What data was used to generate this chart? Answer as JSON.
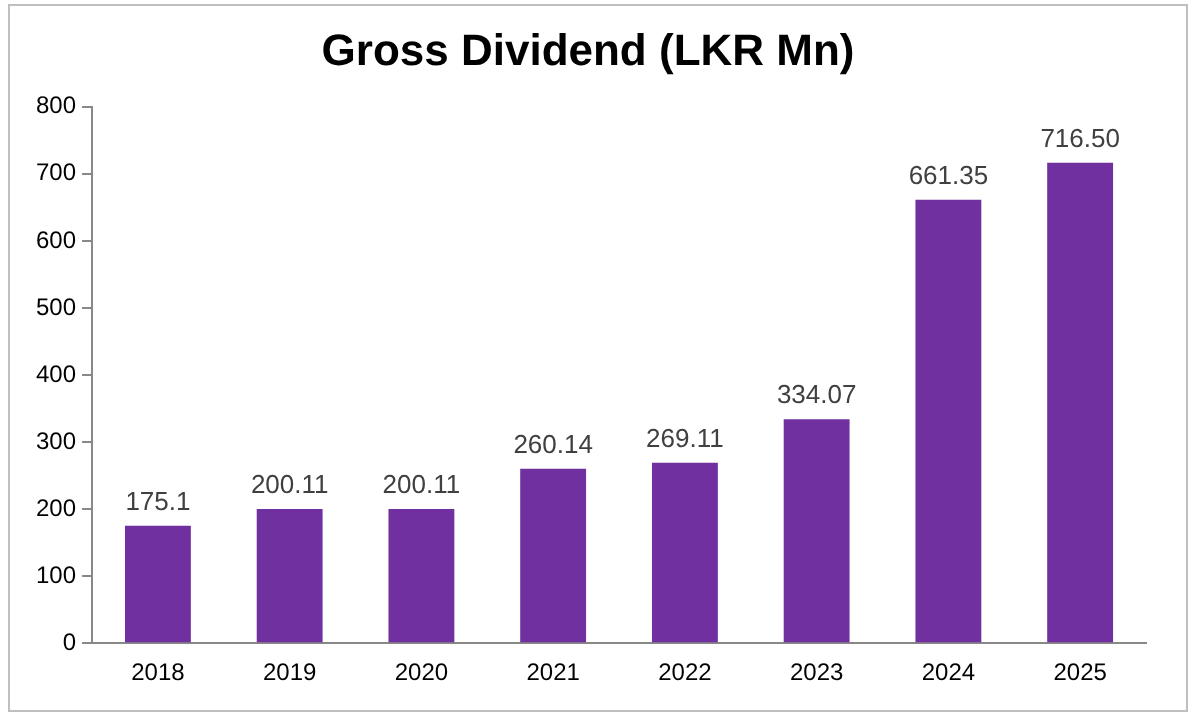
{
  "chart_data": {
    "type": "bar",
    "title": "Gross Dividend (LKR Mn)",
    "categories": [
      "2018",
      "2019",
      "2020",
      "2021",
      "2022",
      "2023",
      "2024",
      "2025"
    ],
    "values": [
      175.1,
      200.11,
      200.11,
      260.14,
      269.11,
      334.07,
      661.35,
      716.5
    ],
    "value_labels": [
      "175.1",
      "200.11",
      "200.11",
      "260.14",
      "269.11",
      "334.07",
      "661.35",
      "716.50"
    ],
    "color": "#7030a0",
    "ylim": [
      0,
      800
    ],
    "yticks": [
      0,
      100,
      200,
      300,
      400,
      500,
      600,
      700,
      800
    ],
    "grid": false,
    "legend": false
  }
}
